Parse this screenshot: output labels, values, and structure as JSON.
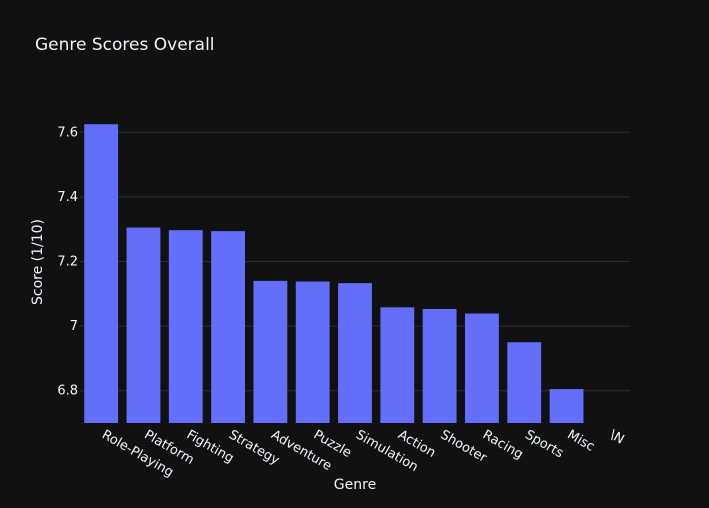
{
  "chart_data": {
    "type": "bar",
    "title": "Genre Scores Overall",
    "xlabel": "Genre",
    "ylabel": "Score (1/10)",
    "categories": [
      "Role-Playing",
      "Platform",
      "Fighting",
      "Strategy",
      "Adventure",
      "Puzzle",
      "Simulation",
      "Action",
      "Shooter",
      "Racing",
      "Sports",
      "Misc",
      "\\N"
    ],
    "values": [
      7.625,
      7.305,
      7.297,
      7.294,
      7.14,
      7.138,
      7.133,
      7.058,
      7.053,
      7.039,
      6.95,
      6.805,
      null
    ],
    "ylim": [
      6.7,
      7.7
    ],
    "yticks": [
      6.8,
      7,
      7.2,
      7.4,
      7.6
    ],
    "ytick_labels": [
      "6.8",
      "7",
      "7.2",
      "7.4",
      "7.6"
    ],
    "grid": true,
    "bar_color": "#636efa",
    "background_color": "#111111",
    "grid_color": "#2c2f36",
    "text_color": "#f2f5fa"
  }
}
